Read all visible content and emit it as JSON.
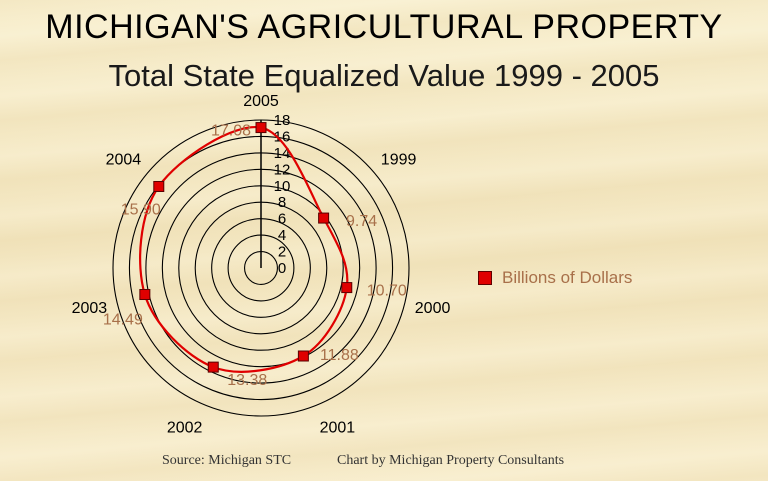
{
  "title": "MICHIGAN'S AGRICULTURAL PROPERTY",
  "subtitle": "Total State Equalized Value  1999 - 2005",
  "chart_data": {
    "type": "radar",
    "categories": [
      "2005",
      "1999",
      "2000",
      "2001",
      "2002",
      "2003",
      "2004"
    ],
    "series": [
      {
        "name": "Billions of Dollars",
        "values": [
          17.08,
          9.74,
          10.7,
          11.88,
          13.38,
          14.49,
          15.9
        ],
        "labels": [
          "17.08",
          "9.74",
          "10.70",
          "11.88",
          "13.38",
          "14.49",
          "15.90"
        ]
      }
    ],
    "rlim": [
      0,
      18
    ],
    "r_ticks": [
      "0",
      "2",
      "4",
      "6",
      "8",
      "10",
      "12",
      "14",
      "16",
      "18"
    ],
    "line_color": "#e00000",
    "marker_color": "#e00000",
    "label_color": "#a8704a",
    "legend_position": "right"
  },
  "legend": {
    "label": "Billions of Dollars"
  },
  "footer": {
    "source": "Source:  Michigan STC",
    "credit": "Chart by Michigan Property Consultants"
  }
}
